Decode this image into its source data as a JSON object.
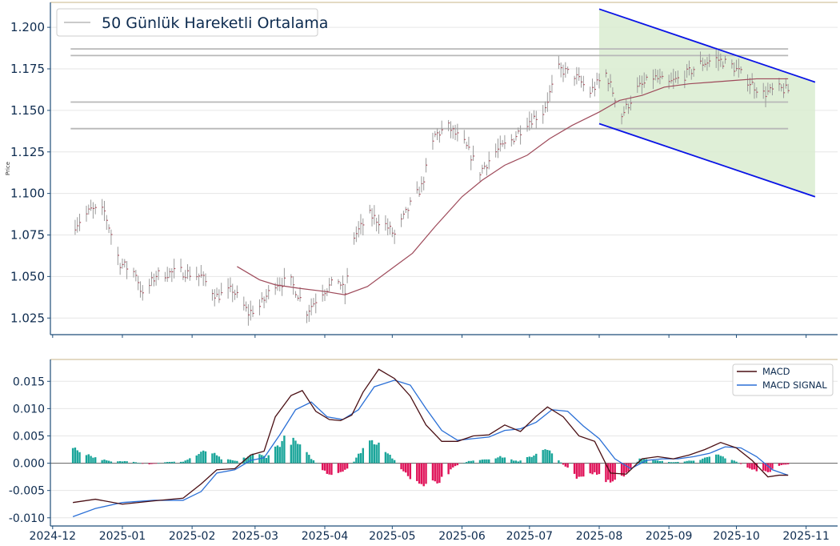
{
  "colors": {
    "axis": "#1f4e79",
    "tick_text": "#0d2b4f",
    "price_bar": "#9a9a9a",
    "price_close": "#b04a5a",
    "ma_line": "#9e4a5a",
    "hline": "#b8b8b8",
    "channel": "#0a14e6",
    "channel_fill": "#d9ecd0",
    "macd": "#4a0f14",
    "signal": "#2a6fd6",
    "hist_pos": "#1aa59a",
    "hist_neg": "#e0145a",
    "grid": "#e6e6e6",
    "top_border": "#c9b48a"
  },
  "chart_data": [
    {
      "type": "line",
      "panel": "price",
      "ylabel": "Price",
      "ylim": [
        1.015,
        1.215
      ],
      "xlim": [
        "2024-11-30",
        "2025-11-15"
      ],
      "yticks": [
        "1.025",
        "1.050",
        "1.075",
        "1.100",
        "1.125",
        "1.150",
        "1.175",
        "1.200"
      ],
      "legend": {
        "position": "top-left",
        "entries": [
          "50 Günlük Hareketli Ortalama"
        ]
      },
      "price_anchors": [
        [
          "2024-12-11",
          1.081
        ],
        [
          "2024-12-18",
          1.09
        ],
        [
          "2024-12-24",
          1.089
        ],
        [
          "2024-12-31",
          1.058
        ],
        [
          "2025-01-07",
          1.052
        ],
        [
          "2025-01-10",
          1.038
        ],
        [
          "2025-01-16",
          1.051
        ],
        [
          "2025-01-27",
          1.053
        ],
        [
          "2025-02-05",
          1.05
        ],
        [
          "2025-02-12",
          1.038
        ],
        [
          "2025-02-19",
          1.042
        ],
        [
          "2025-02-26",
          1.028
        ],
        [
          "2025-03-03",
          1.032
        ],
        [
          "2025-03-10",
          1.046
        ],
        [
          "2025-03-17",
          1.047
        ],
        [
          "2025-03-24",
          1.029
        ],
        [
          "2025-03-31",
          1.041
        ],
        [
          "2025-04-07",
          1.048
        ],
        [
          "2025-04-10",
          1.04
        ],
        [
          "2025-04-14",
          1.074
        ],
        [
          "2025-04-21",
          1.087
        ],
        [
          "2025-04-28",
          1.081
        ],
        [
          "2025-05-02",
          1.075
        ],
        [
          "2025-05-09",
          1.093
        ],
        [
          "2025-05-14",
          1.104
        ],
        [
          "2025-05-20",
          1.135
        ],
        [
          "2025-05-26",
          1.14
        ],
        [
          "2025-06-02",
          1.13
        ],
        [
          "2025-06-09",
          1.113
        ],
        [
          "2025-06-16",
          1.125
        ],
        [
          "2025-06-23",
          1.132
        ],
        [
          "2025-06-30",
          1.143
        ],
        [
          "2025-07-07",
          1.149
        ],
        [
          "2025-07-14",
          1.175
        ],
        [
          "2025-07-21",
          1.171
        ],
        [
          "2025-07-28",
          1.161
        ],
        [
          "2025-08-04",
          1.172
        ],
        [
          "2025-08-11",
          1.147
        ],
        [
          "2025-08-18",
          1.163
        ],
        [
          "2025-08-25",
          1.17
        ],
        [
          "2025-09-01",
          1.166
        ],
        [
          "2025-09-08",
          1.171
        ],
        [
          "2025-09-15",
          1.178
        ],
        [
          "2025-09-22",
          1.181
        ],
        [
          "2025-09-29",
          1.177
        ],
        [
          "2025-10-06",
          1.168
        ],
        [
          "2025-10-13",
          1.16
        ],
        [
          "2025-10-20",
          1.163
        ],
        [
          "2025-10-24",
          1.162
        ]
      ],
      "moving_average_50": [
        [
          "2025-02-21",
          1.056
        ],
        [
          "2025-03-03",
          1.048
        ],
        [
          "2025-03-10",
          1.045
        ],
        [
          "2025-03-20",
          1.043
        ],
        [
          "2025-04-01",
          1.041
        ],
        [
          "2025-04-10",
          1.039
        ],
        [
          "2025-04-20",
          1.044
        ],
        [
          "2025-05-01",
          1.055
        ],
        [
          "2025-05-10",
          1.064
        ],
        [
          "2025-05-20",
          1.08
        ],
        [
          "2025-06-01",
          1.098
        ],
        [
          "2025-06-10",
          1.108
        ],
        [
          "2025-06-20",
          1.117
        ],
        [
          "2025-06-30",
          1.123
        ],
        [
          "2025-07-10",
          1.133
        ],
        [
          "2025-07-20",
          1.141
        ],
        [
          "2025-08-01",
          1.149
        ],
        [
          "2025-08-10",
          1.156
        ],
        [
          "2025-08-20",
          1.159
        ],
        [
          "2025-08-30",
          1.164
        ],
        [
          "2025-09-10",
          1.166
        ],
        [
          "2025-09-20",
          1.167
        ],
        [
          "2025-09-30",
          1.168
        ],
        [
          "2025-10-10",
          1.169
        ],
        [
          "2025-10-24",
          1.169
        ]
      ],
      "horizontal_levels": [
        1.187,
        1.183,
        1.155,
        1.139
      ],
      "horizontal_levels_range": [
        "2024-12-09",
        "2025-10-24"
      ],
      "channel": {
        "start": "2025-08-01",
        "end": "2025-11-05",
        "upper": [
          1.211,
          1.167
        ],
        "lower": [
          1.142,
          1.098
        ]
      }
    },
    {
      "type": "line",
      "panel": "macd",
      "ylim": [
        -0.0115,
        0.019
      ],
      "yticks": [
        "0.015",
        "0.010",
        "0.005",
        "0.000",
        "-0.005",
        "-0.010"
      ],
      "xticks": [
        "2024-12",
        "2025-01",
        "2025-02",
        "2025-03",
        "2025-04",
        "2025-05",
        "2025-06",
        "2025-07",
        "2025-08",
        "2025-09",
        "2025-10",
        "2025-11"
      ],
      "legend": {
        "position": "top-right",
        "entries": [
          "MACD",
          "MACD SIGNAL"
        ]
      },
      "series": [
        {
          "name": "MACD",
          "points": [
            [
              "2024-12-10",
              -0.0072
            ],
            [
              "2024-12-20",
              -0.0066
            ],
            [
              "2025-01-01",
              -0.0075
            ],
            [
              "2025-01-15",
              -0.0069
            ],
            [
              "2025-01-28",
              -0.0064
            ],
            [
              "2025-02-05",
              -0.0038
            ],
            [
              "2025-02-12",
              -0.0012
            ],
            [
              "2025-02-20",
              -0.001
            ],
            [
              "2025-02-27",
              0.0015
            ],
            [
              "2025-03-05",
              0.0022
            ],
            [
              "2025-03-10",
              0.0085
            ],
            [
              "2025-03-17",
              0.0124
            ],
            [
              "2025-03-22",
              0.0133
            ],
            [
              "2025-03-28",
              0.0095
            ],
            [
              "2025-04-03",
              0.008
            ],
            [
              "2025-04-08",
              0.0078
            ],
            [
              "2025-04-13",
              0.0088
            ],
            [
              "2025-04-18",
              0.013
            ],
            [
              "2025-04-25",
              0.0172
            ],
            [
              "2025-05-02",
              0.0155
            ],
            [
              "2025-05-09",
              0.0123
            ],
            [
              "2025-05-16",
              0.007
            ],
            [
              "2025-05-23",
              0.004
            ],
            [
              "2025-05-30",
              0.004
            ],
            [
              "2025-06-06",
              0.005
            ],
            [
              "2025-06-13",
              0.0052
            ],
            [
              "2025-06-20",
              0.007
            ],
            [
              "2025-06-27",
              0.0058
            ],
            [
              "2025-07-04",
              0.0086
            ],
            [
              "2025-07-09",
              0.0103
            ],
            [
              "2025-07-16",
              0.0085
            ],
            [
              "2025-07-23",
              0.005
            ],
            [
              "2025-07-30",
              0.004
            ],
            [
              "2025-08-06",
              -0.0018
            ],
            [
              "2025-08-13",
              -0.002
            ],
            [
              "2025-08-20",
              0.0008
            ],
            [
              "2025-08-27",
              0.0012
            ],
            [
              "2025-09-03",
              0.0008
            ],
            [
              "2025-09-10",
              0.0015
            ],
            [
              "2025-09-17",
              0.0025
            ],
            [
              "2025-09-24",
              0.0038
            ],
            [
              "2025-10-01",
              0.0028
            ],
            [
              "2025-10-08",
              0.0005
            ],
            [
              "2025-10-15",
              -0.0025
            ],
            [
              "2025-10-20",
              -0.0022
            ],
            [
              "2025-10-24",
              -0.0022
            ]
          ]
        },
        {
          "name": "MACD SIGNAL",
          "points": [
            [
              "2024-12-10",
              -0.0098
            ],
            [
              "2024-12-20",
              -0.0083
            ],
            [
              "2025-01-01",
              -0.0072
            ],
            [
              "2025-01-15",
              -0.0068
            ],
            [
              "2025-01-28",
              -0.0068
            ],
            [
              "2025-02-05",
              -0.0052
            ],
            [
              "2025-02-12",
              -0.0018
            ],
            [
              "2025-02-20",
              -0.0012
            ],
            [
              "2025-02-27",
              0.0005
            ],
            [
              "2025-03-05",
              0.001
            ],
            [
              "2025-03-12",
              0.0052
            ],
            [
              "2025-03-19",
              0.0098
            ],
            [
              "2025-03-26",
              0.0112
            ],
            [
              "2025-04-02",
              0.0085
            ],
            [
              "2025-04-09",
              0.008
            ],
            [
              "2025-04-16",
              0.0098
            ],
            [
              "2025-04-23",
              0.014
            ],
            [
              "2025-05-02",
              0.0152
            ],
            [
              "2025-05-09",
              0.0143
            ],
            [
              "2025-05-16",
              0.01
            ],
            [
              "2025-05-23",
              0.006
            ],
            [
              "2025-05-30",
              0.0042
            ],
            [
              "2025-06-06",
              0.0045
            ],
            [
              "2025-06-13",
              0.0048
            ],
            [
              "2025-06-20",
              0.006
            ],
            [
              "2025-06-27",
              0.0063
            ],
            [
              "2025-07-04",
              0.0075
            ],
            [
              "2025-07-11",
              0.0098
            ],
            [
              "2025-07-18",
              0.0095
            ],
            [
              "2025-07-25",
              0.0068
            ],
            [
              "2025-08-01",
              0.0045
            ],
            [
              "2025-08-08",
              0.0008
            ],
            [
              "2025-08-15",
              -0.001
            ],
            [
              "2025-08-22",
              0.0005
            ],
            [
              "2025-08-29",
              0.0008
            ],
            [
              "2025-09-05",
              0.0008
            ],
            [
              "2025-09-12",
              0.0012
            ],
            [
              "2025-09-19",
              0.0018
            ],
            [
              "2025-09-26",
              0.003
            ],
            [
              "2025-10-03",
              0.0028
            ],
            [
              "2025-10-10",
              0.0012
            ],
            [
              "2025-10-17",
              -0.0012
            ],
            [
              "2025-10-24",
              -0.0022
            ]
          ]
        }
      ],
      "histogram_anchors": [
        [
          "2024-12-10",
          0.0028
        ],
        [
          "2024-12-15",
          0.002
        ],
        [
          "2024-12-20",
          0.001
        ],
        [
          "2024-12-27",
          0.0003
        ],
        [
          "2025-01-05",
          0.0004
        ],
        [
          "2025-01-12",
          -0.0003
        ],
        [
          "2025-01-20",
          0.0002
        ],
        [
          "2025-01-28",
          0.0003
        ],
        [
          "2025-02-03",
          0.0015
        ],
        [
          "2025-02-08",
          0.0025
        ],
        [
          "2025-02-14",
          0.0008
        ],
        [
          "2025-02-21",
          0.0004
        ],
        [
          "2025-03-01",
          0.0018
        ],
        [
          "2025-03-06",
          0.0012
        ],
        [
          "2025-03-14",
          0.0045
        ],
        [
          "2025-03-19",
          0.004
        ],
        [
          "2025-03-27",
          0.0005
        ],
        [
          "2025-04-03",
          -0.0025
        ],
        [
          "2025-04-10",
          -0.0015
        ],
        [
          "2025-04-14",
          0.0003
        ],
        [
          "2025-04-20",
          0.0042
        ],
        [
          "2025-04-25",
          0.004
        ],
        [
          "2025-05-01",
          0.001
        ],
        [
          "2025-05-08",
          -0.0025
        ],
        [
          "2025-05-15",
          -0.0045
        ],
        [
          "2025-05-22",
          -0.0035
        ],
        [
          "2025-05-29",
          -0.0005
        ],
        [
          "2025-06-05",
          0.0005
        ],
        [
          "2025-06-12",
          0.0008
        ],
        [
          "2025-06-19",
          0.0012
        ],
        [
          "2025-06-26",
          0.0003
        ],
        [
          "2025-07-03",
          0.0015
        ],
        [
          "2025-07-08",
          0.003
        ],
        [
          "2025-07-14",
          0.0005
        ],
        [
          "2025-07-22",
          -0.0025
        ],
        [
          "2025-07-30",
          -0.0018
        ],
        [
          "2025-08-05",
          -0.0038
        ],
        [
          "2025-08-12",
          -0.0025
        ],
        [
          "2025-08-19",
          0.0008
        ],
        [
          "2025-08-26",
          0.0005
        ],
        [
          "2025-09-02",
          0.0002
        ],
        [
          "2025-09-09",
          0.0004
        ],
        [
          "2025-09-16",
          0.0008
        ],
        [
          "2025-09-23",
          0.0015
        ],
        [
          "2025-09-30",
          0.0005
        ],
        [
          "2025-10-07",
          -0.001
        ],
        [
          "2025-10-14",
          -0.0018
        ],
        [
          "2025-10-21",
          -0.0004
        ],
        [
          "2025-10-24",
          -0.0002
        ]
      ]
    }
  ]
}
